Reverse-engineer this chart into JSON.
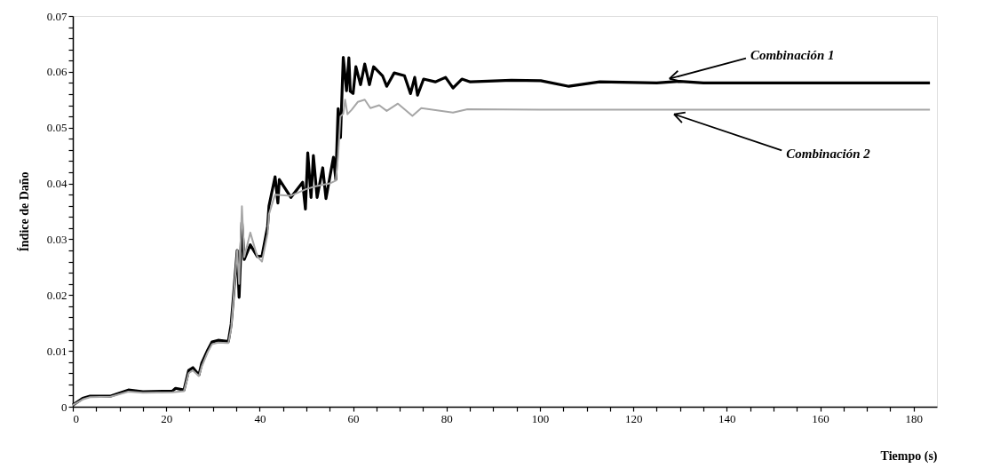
{
  "chart_data": {
    "type": "line",
    "xlabel": "Tiempo (s)",
    "ylabel": "Índice de Daño",
    "xlim": [
      0,
      185
    ],
    "ylim": [
      0,
      0.07
    ],
    "xticks": [
      0,
      {
        "value": 5,
        "label": null
      },
      {
        "value": 10,
        "label": null
      },
      {
        "value": 15,
        "label": null
      },
      20,
      {
        "value": 25,
        "label": null
      },
      {
        "value": 30,
        "label": null
      },
      {
        "value": 35,
        "label": null
      },
      40,
      {
        "value": 45,
        "label": null
      },
      {
        "value": 50,
        "label": null
      },
      {
        "value": 55,
        "label": null
      },
      60,
      {
        "value": 65,
        "label": null
      },
      {
        "value": 70,
        "label": null
      },
      {
        "value": 75,
        "label": null
      },
      80,
      {
        "value": 85,
        "label": null
      },
      {
        "value": 90,
        "label": null
      },
      {
        "value": 95,
        "label": null
      },
      100,
      {
        "value": 105,
        "label": null
      },
      {
        "value": 110,
        "label": null
      },
      {
        "value": 115,
        "label": null
      },
      120,
      {
        "value": 125,
        "label": null
      },
      {
        "value": 130,
        "label": null
      },
      {
        "value": 135,
        "label": null
      },
      140,
      {
        "value": 145,
        "label": null
      },
      {
        "value": 150,
        "label": null
      },
      {
        "value": 155,
        "label": null
      },
      160,
      {
        "value": 165,
        "label": null
      },
      {
        "value": 170,
        "label": null
      },
      {
        "value": 175,
        "label": null
      },
      180
    ],
    "yticks": [
      0,
      {
        "value": 0.002,
        "label": null
      },
      {
        "value": 0.004,
        "label": null
      },
      {
        "value": 0.006,
        "label": null
      },
      {
        "value": 0.008,
        "label": null
      },
      0.01,
      {
        "value": 0.012,
        "label": null
      },
      {
        "value": 0.014,
        "label": null
      },
      {
        "value": 0.016,
        "label": null
      },
      {
        "value": 0.018,
        "label": null
      },
      0.02,
      {
        "value": 0.022,
        "label": null
      },
      {
        "value": 0.024,
        "label": null
      },
      {
        "value": 0.026,
        "label": null
      },
      {
        "value": 0.028,
        "label": null
      },
      0.03,
      {
        "value": 0.032,
        "label": null
      },
      {
        "value": 0.034,
        "label": null
      },
      {
        "value": 0.036,
        "label": null
      },
      {
        "value": 0.038,
        "label": null
      },
      0.04,
      {
        "value": 0.042,
        "label": null
      },
      {
        "value": 0.044,
        "label": null
      },
      {
        "value": 0.046,
        "label": null
      },
      {
        "value": 0.048,
        "label": null
      },
      0.05,
      {
        "value": 0.052,
        "label": null
      },
      {
        "value": 0.054,
        "label": null
      },
      {
        "value": 0.056,
        "label": null
      },
      {
        "value": 0.058,
        "label": null
      },
      0.06,
      {
        "value": 0.062,
        "label": null
      },
      {
        "value": 0.064,
        "label": null
      },
      {
        "value": 0.066,
        "label": null
      },
      {
        "value": 0.068,
        "label": null
      },
      0.07
    ],
    "grid": false,
    "marker": "none",
    "line_style": "solid",
    "series": [
      {
        "color": "#000000",
        "x": [
          0,
          2.1,
          3.7,
          8.1,
          11.9,
          15,
          21.3,
          22,
          23.8,
          24.8,
          25.7,
          27,
          27.6,
          28.9,
          29.8,
          31.1,
          33.3,
          33.9,
          35.2,
          35.6,
          36.2,
          36.7,
          38,
          39.5,
          40.5,
          41.7,
          42,
          43.3,
          43.9,
          44.2,
          46.7,
          49.2,
          49.8,
          50.3,
          51,
          51.5,
          52.3,
          53.5,
          54.2,
          55.8,
          56.3,
          56.8,
          57.3,
          57.9,
          58.6,
          59.1,
          59.4,
          60,
          60.6,
          61.6,
          62.5,
          63.5,
          64.4,
          66.3,
          67.2,
          68.8,
          71,
          72.3,
          73.2,
          73.8,
          75.1,
          77.6,
          79.8,
          81.4,
          83.3,
          85.1,
          93.9,
          100.2,
          106.2,
          112.8,
          125,
          130,
          135,
          150,
          183.5
        ],
        "values": [
          0.0003,
          0.0015,
          0.0019,
          0.0019,
          0.003,
          0.0027,
          0.0028,
          0.0033,
          0.003,
          0.0065,
          0.007,
          0.0057,
          0.0078,
          0.0102,
          0.0116,
          0.0119,
          0.0117,
          0.0148,
          0.028,
          0.0196,
          0.033,
          0.0264,
          0.029,
          0.0269,
          0.027,
          0.0323,
          0.036,
          0.0412,
          0.0365,
          0.0407,
          0.0375,
          0.0402,
          0.0354,
          0.0455,
          0.0375,
          0.045,
          0.0375,
          0.0428,
          0.0373,
          0.0447,
          0.0407,
          0.0534,
          0.0482,
          0.0626,
          0.0566,
          0.0625,
          0.0565,
          0.0561,
          0.0609,
          0.0577,
          0.0614,
          0.0577,
          0.0609,
          0.0593,
          0.0574,
          0.0598,
          0.0593,
          0.0561,
          0.059,
          0.0558,
          0.0587,
          0.0582,
          0.059,
          0.0571,
          0.0587,
          0.0582,
          0.0585,
          0.0584,
          0.0574,
          0.0582,
          0.058,
          0.0583,
          0.058,
          0.058,
          0.058
        ]
      },
      {
        "color": "#a6a6a6",
        "x": [
          0,
          2.1,
          3.7,
          8.1,
          11.9,
          15,
          21.3,
          23.8,
          24.8,
          25.7,
          27,
          27.6,
          28.9,
          29.8,
          31.1,
          33.3,
          33.9,
          35.2,
          35.6,
          36.2,
          36.7,
          38,
          39.5,
          40.5,
          41.7,
          42,
          43.3,
          46.7,
          50,
          52,
          55,
          56.3,
          56.8,
          57.3,
          57.9,
          58.3,
          58.8,
          59.7,
          61,
          62.5,
          63.7,
          65.6,
          67.2,
          69.6,
          72.7,
          74.6,
          81.4,
          84.5,
          100,
          183.5
        ],
        "values": [
          0.0003,
          0.0013,
          0.0017,
          0.0018,
          0.0027,
          0.0025,
          0.0026,
          0.0028,
          0.006,
          0.0065,
          0.0055,
          0.0072,
          0.0098,
          0.0112,
          0.0115,
          0.0114,
          0.014,
          0.028,
          0.022,
          0.0359,
          0.0268,
          0.0312,
          0.0269,
          0.026,
          0.031,
          0.0345,
          0.038,
          0.0378,
          0.039,
          0.0395,
          0.04,
          0.0405,
          0.045,
          0.052,
          0.0525,
          0.055,
          0.0524,
          0.0532,
          0.0546,
          0.055,
          0.0535,
          0.054,
          0.053,
          0.0543,
          0.0521,
          0.0535,
          0.0527,
          0.0533,
          0.0532,
          0.0532
        ]
      }
    ],
    "annotations": [
      {
        "text": "Combinación 1",
        "x": 127,
        "y": 0.0586
      },
      {
        "text": "Combinación 2",
        "x": 128,
        "y": 0.0526
      }
    ]
  }
}
